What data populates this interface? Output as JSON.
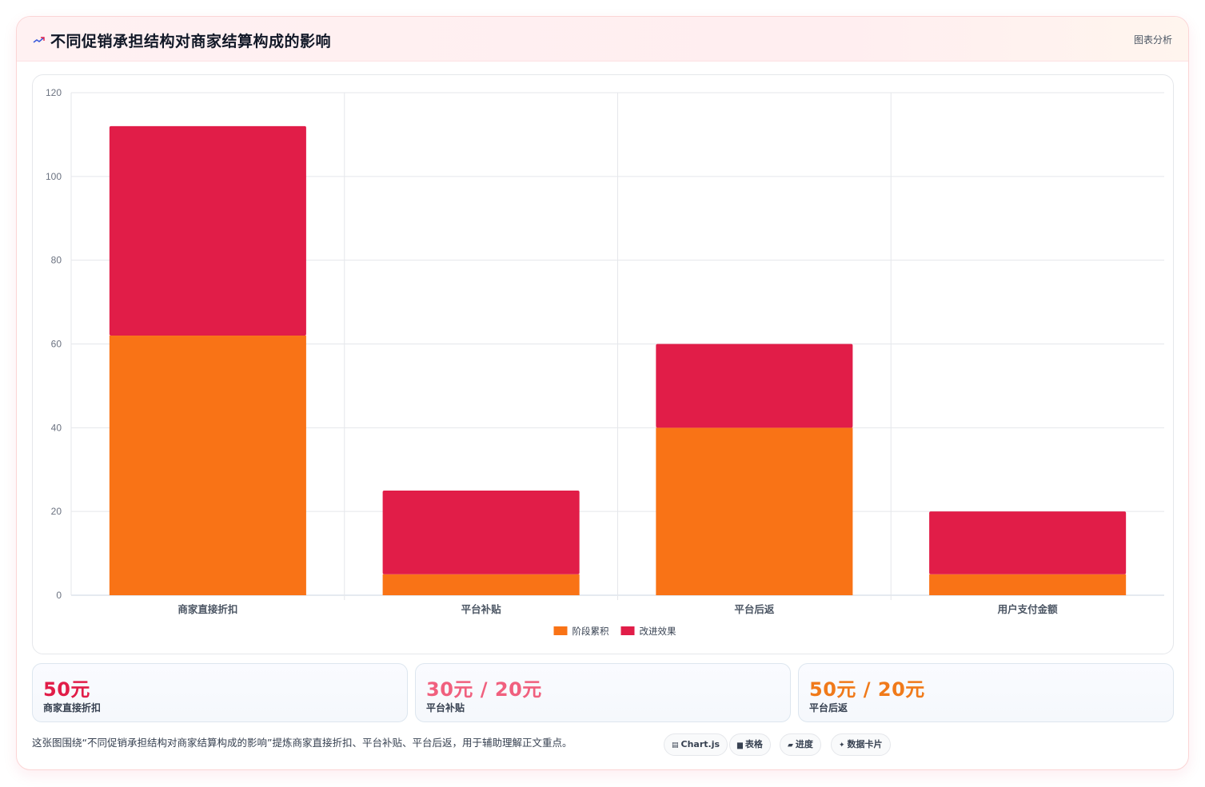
{
  "header": {
    "title": "不同促销承担结构对商家结算构成的影响",
    "right_label": "图表分析",
    "accent_color": "#e11d48"
  },
  "chart_data": {
    "type": "bar",
    "stacked": true,
    "categories": [
      "商家直接折扣",
      "平台补贴",
      "平台后返",
      "用户支付金额"
    ],
    "series": [
      {
        "name": "阶段累积",
        "color": "#f97316",
        "values": [
          62,
          5,
          40,
          5
        ]
      },
      {
        "name": "改进效果",
        "color": "#e11d48",
        "values": [
          50,
          20,
          20,
          15
        ]
      }
    ],
    "ylim": [
      0,
      120
    ],
    "yticks": [
      0,
      20,
      40,
      60,
      80,
      100,
      120
    ],
    "grid": true,
    "legend": "bottom"
  },
  "stats": [
    {
      "value": "50元",
      "label": "商家直接折扣",
      "color": "#e11d48"
    },
    {
      "value": "30元 / 20元",
      "label": "平台补贴",
      "color": "#f0607e"
    },
    {
      "value": "50元 / 20元",
      "label": "平台后返",
      "color": "#f07a1a"
    }
  ],
  "caption": "这张图围绕“不同促销承担结构对商家结算构成的影响”提炼商家直接折扣、平台补贴、平台后返，用于辅助理解正文重点。",
  "tags": [
    {
      "icon": "chart-icon",
      "glyph": "▤",
      "label": "Chart.js"
    },
    {
      "icon": "table-icon",
      "glyph": "▆",
      "label": "表格"
    },
    {
      "icon": "progress-icon",
      "glyph": "▰",
      "label": "进度"
    },
    {
      "icon": "sparkle-icon",
      "glyph": "✦",
      "label": "数据卡片"
    }
  ]
}
